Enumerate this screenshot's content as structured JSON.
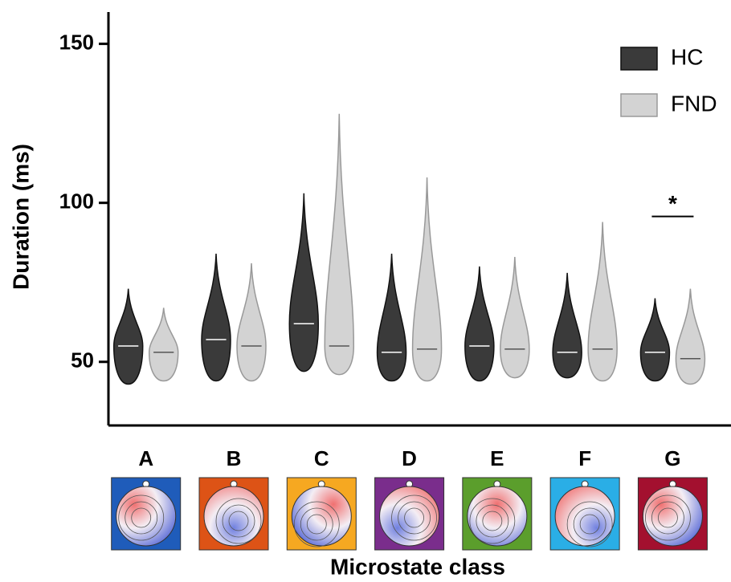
{
  "chart_data": {
    "type": "violin",
    "ylabel": "Duration (ms)",
    "xlabel": "Microstate class",
    "categories": [
      "A",
      "B",
      "C",
      "D",
      "E",
      "F",
      "G"
    ],
    "series": [
      {
        "name": "HC",
        "color": "#3a3a3a",
        "min": [
          43,
          44,
          47,
          44,
          44,
          45,
          44
        ],
        "median": [
          55,
          57,
          62,
          53,
          55,
          53,
          53
        ],
        "max": [
          73,
          84,
          103,
          84,
          80,
          78,
          70
        ]
      },
      {
        "name": "FND",
        "color": "#d3d3d3",
        "min": [
          44,
          44,
          46,
          44,
          45,
          44,
          43
        ],
        "median": [
          53,
          55,
          55,
          54,
          54,
          54,
          51
        ],
        "max": [
          67,
          81,
          128,
          108,
          83,
          94,
          73
        ]
      }
    ],
    "annotation": "*",
    "ylim": [
      30,
      160
    ],
    "yticks": [
      50,
      100,
      150
    ],
    "legend": "upper right"
  }
}
